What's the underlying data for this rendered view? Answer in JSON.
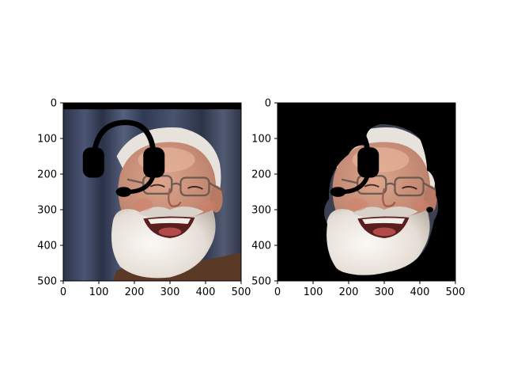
{
  "panels": [
    {
      "name": "original-with-headset",
      "x_ticks": [
        "0",
        "100",
        "200",
        "300",
        "400",
        "500"
      ],
      "y_ticks": [
        "0",
        "100",
        "200",
        "300",
        "400",
        "500"
      ]
    },
    {
      "name": "segmented-face",
      "x_ticks": [
        "0",
        "100",
        "200",
        "300",
        "400",
        "500"
      ],
      "y_ticks": [
        "0",
        "100",
        "200",
        "300",
        "400",
        "500"
      ]
    }
  ],
  "colors": {
    "axes_frame": "#000000",
    "mask_background": "#000000",
    "headset": "#000000",
    "photo_background": "#3e4763",
    "skin": "#c9927b",
    "beard": "#efeae6",
    "hair": "#e7e2dc",
    "shirt": "#5a3a26"
  }
}
